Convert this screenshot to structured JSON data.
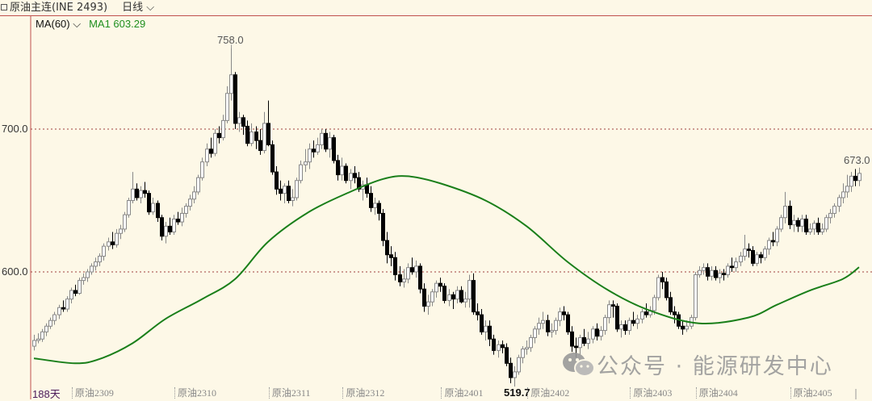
{
  "header": {
    "instrument": "原油主连(INE 2493)",
    "period": "日线"
  },
  "indicator": {
    "selector": "MA(60)",
    "value_label": "MA1 603.29"
  },
  "footer": {
    "days": "188天"
  },
  "watermark": "公众号 · 能源研发中心",
  "colors": {
    "background": "#fdf8e7",
    "up": "#ffffff",
    "up_border": "#888888",
    "down": "#000000",
    "ma": "#1a7f1a",
    "grid": "#a0403d"
  },
  "chart_data": {
    "type": "candlestick",
    "ylim": [
      520.3,
      779
    ],
    "yticks": [
      {
        "value": 700,
        "label": "700.0"
      },
      {
        "value": 600,
        "label": "600.0"
      }
    ],
    "grid": "dotted horizontal at ticks",
    "xticks": [
      {
        "index": 10,
        "label": "原油2309"
      },
      {
        "index": 35,
        "label": "原油2310"
      },
      {
        "index": 58,
        "label": "原油2311"
      },
      {
        "index": 76,
        "label": "原油2312"
      },
      {
        "index": 100,
        "label": "原油2401"
      },
      {
        "index": 121,
        "label": "原油2402"
      },
      {
        "index": 146,
        "label": "原油2403"
      },
      {
        "index": 162,
        "label": "原油2404"
      },
      {
        "index": 185,
        "label": "原油2405"
      }
    ],
    "annotations": {
      "high": "758.0",
      "low": "519.7",
      "last_high": "673.0"
    },
    "ohlc": [
      [
        548,
        556,
        545,
        552
      ],
      [
        552,
        557,
        550,
        553
      ],
      [
        553,
        560,
        551,
        558
      ],
      [
        558,
        564,
        555,
        562
      ],
      [
        562,
        568,
        560,
        566
      ],
      [
        566,
        572,
        563,
        570
      ],
      [
        570,
        577,
        567,
        575
      ],
      [
        575,
        580,
        572,
        574
      ],
      [
        574,
        583,
        572,
        581
      ],
      [
        581,
        589,
        578,
        587
      ],
      [
        587,
        591,
        583,
        585
      ],
      [
        585,
        596,
        584,
        594
      ],
      [
        594,
        599,
        591,
        596
      ],
      [
        596,
        602,
        593,
        600
      ],
      [
        600,
        606,
        598,
        604
      ],
      [
        604,
        610,
        601,
        607
      ],
      [
        607,
        613,
        604,
        611
      ],
      [
        611,
        620,
        608,
        618
      ],
      [
        618,
        624,
        615,
        621
      ],
      [
        621,
        628,
        616,
        619
      ],
      [
        619,
        630,
        617,
        627
      ],
      [
        627,
        633,
        623,
        630
      ],
      [
        630,
        642,
        628,
        640
      ],
      [
        640,
        652,
        638,
        650
      ],
      [
        650,
        670,
        648,
        658
      ],
      [
        658,
        662,
        650,
        652
      ],
      [
        652,
        660,
        648,
        657
      ],
      [
        657,
        663,
        652,
        655
      ],
      [
        655,
        657,
        640,
        642
      ],
      [
        642,
        652,
        640,
        648
      ],
      [
        648,
        650,
        635,
        638
      ],
      [
        638,
        640,
        622,
        625
      ],
      [
        625,
        635,
        620,
        632
      ],
      [
        632,
        638,
        626,
        628
      ],
      [
        628,
        640,
        626,
        637
      ],
      [
        637,
        642,
        633,
        635
      ],
      [
        635,
        645,
        632,
        641
      ],
      [
        641,
        648,
        638,
        646
      ],
      [
        646,
        654,
        643,
        651
      ],
      [
        651,
        660,
        648,
        656
      ],
      [
        656,
        668,
        654,
        666
      ],
      [
        666,
        680,
        664,
        677
      ],
      [
        677,
        690,
        674,
        686
      ],
      [
        686,
        694,
        680,
        683
      ],
      [
        683,
        700,
        681,
        697
      ],
      [
        697,
        702,
        690,
        694
      ],
      [
        694,
        710,
        692,
        706
      ],
      [
        706,
        730,
        704,
        725
      ],
      [
        725,
        758,
        720,
        738
      ],
      [
        738,
        740,
        700,
        704
      ],
      [
        704,
        712,
        698,
        708
      ],
      [
        708,
        710,
        696,
        702
      ],
      [
        702,
        706,
        688,
        690
      ],
      [
        690,
        704,
        688,
        698
      ],
      [
        698,
        702,
        686,
        692
      ],
      [
        692,
        700,
        682,
        685
      ],
      [
        685,
        712,
        683,
        704
      ],
      [
        704,
        720,
        688,
        689
      ],
      [
        689,
        692,
        668,
        670
      ],
      [
        670,
        674,
        654,
        658
      ],
      [
        658,
        664,
        650,
        655
      ],
      [
        655,
        662,
        648,
        660
      ],
      [
        660,
        664,
        648,
        650
      ],
      [
        650,
        658,
        646,
        652
      ],
      [
        652,
        666,
        650,
        664
      ],
      [
        664,
        678,
        662,
        675
      ],
      [
        675,
        686,
        670,
        677
      ],
      [
        677,
        690,
        672,
        686
      ],
      [
        686,
        692,
        680,
        684
      ],
      [
        684,
        694,
        682,
        689
      ],
      [
        689,
        700,
        686,
        697
      ],
      [
        697,
        700,
        684,
        686
      ],
      [
        686,
        698,
        680,
        694
      ],
      [
        694,
        696,
        676,
        678
      ],
      [
        678,
        682,
        664,
        668
      ],
      [
        668,
        680,
        664,
        674
      ],
      [
        674,
        676,
        662,
        664
      ],
      [
        664,
        672,
        658,
        669
      ],
      [
        669,
        674,
        662,
        666
      ],
      [
        666,
        670,
        656,
        658
      ],
      [
        658,
        664,
        650,
        661
      ],
      [
        661,
        666,
        652,
        655
      ],
      [
        655,
        660,
        642,
        645
      ],
      [
        645,
        652,
        640,
        648
      ],
      [
        648,
        650,
        636,
        641
      ],
      [
        641,
        644,
        618,
        622
      ],
      [
        622,
        628,
        606,
        612
      ],
      [
        612,
        618,
        604,
        610
      ],
      [
        610,
        614,
        594,
        598
      ],
      [
        598,
        604,
        590,
        593
      ],
      [
        593,
        602,
        589,
        595
      ],
      [
        595,
        606,
        592,
        603
      ],
      [
        603,
        610,
        598,
        600
      ],
      [
        600,
        608,
        596,
        604
      ],
      [
        604,
        606,
        585,
        588
      ],
      [
        588,
        592,
        572,
        576
      ],
      [
        576,
        584,
        570,
        579
      ],
      [
        579,
        588,
        576,
        586
      ],
      [
        586,
        594,
        582,
        592
      ],
      [
        592,
        596,
        586,
        590
      ],
      [
        590,
        592,
        578,
        580
      ],
      [
        580,
        588,
        576,
        584
      ],
      [
        584,
        586,
        574,
        581
      ],
      [
        581,
        590,
        578,
        587
      ],
      [
        587,
        590,
        578,
        579
      ],
      [
        579,
        586,
        575,
        581
      ],
      [
        581,
        598,
        575,
        594
      ],
      [
        594,
        599,
        570,
        572
      ],
      [
        572,
        578,
        566,
        570
      ],
      [
        570,
        574,
        556,
        558
      ],
      [
        558,
        566,
        552,
        562
      ],
      [
        562,
        566,
        548,
        553
      ],
      [
        553,
        556,
        542,
        545
      ],
      [
        545,
        552,
        540,
        549
      ],
      [
        549,
        552,
        543,
        547
      ],
      [
        547,
        550,
        534,
        536
      ],
      [
        536,
        540,
        522,
        526
      ],
      [
        526,
        534,
        519.7,
        530
      ],
      [
        530,
        542,
        528,
        540
      ],
      [
        540,
        548,
        536,
        546
      ],
      [
        546,
        552,
        542,
        547
      ],
      [
        547,
        556,
        544,
        554
      ],
      [
        554,
        562,
        550,
        560
      ],
      [
        560,
        568,
        556,
        564
      ],
      [
        564,
        572,
        560,
        566
      ],
      [
        566,
        570,
        555,
        558
      ],
      [
        558,
        564,
        554,
        559
      ],
      [
        559,
        568,
        556,
        566
      ],
      [
        566,
        575,
        562,
        572
      ],
      [
        572,
        576,
        566,
        570
      ],
      [
        570,
        572,
        556,
        558
      ],
      [
        558,
        562,
        544,
        548
      ],
      [
        548,
        554,
        540,
        547
      ],
      [
        547,
        556,
        542,
        554
      ],
      [
        554,
        560,
        548,
        550
      ],
      [
        550,
        558,
        546,
        553
      ],
      [
        553,
        562,
        550,
        560
      ],
      [
        560,
        564,
        552,
        555
      ],
      [
        555,
        562,
        552,
        559
      ],
      [
        559,
        570,
        556,
        568
      ],
      [
        568,
        580,
        564,
        577
      ],
      [
        577,
        580,
        568,
        576
      ],
      [
        576,
        578,
        558,
        560
      ],
      [
        560,
        566,
        554,
        563
      ],
      [
        563,
        566,
        556,
        559
      ],
      [
        559,
        568,
        556,
        566
      ],
      [
        566,
        572,
        562,
        564
      ],
      [
        564,
        570,
        560,
        567
      ],
      [
        567,
        574,
        564,
        572
      ],
      [
        572,
        578,
        568,
        570
      ],
      [
        570,
        576,
        568,
        573
      ],
      [
        573,
        584,
        570,
        582
      ],
      [
        582,
        598,
        580,
        596
      ],
      [
        596,
        600,
        588,
        593
      ],
      [
        593,
        596,
        580,
        582
      ],
      [
        582,
        586,
        570,
        572
      ],
      [
        572,
        576,
        564,
        570
      ],
      [
        570,
        572,
        560,
        562
      ],
      [
        562,
        566,
        556,
        560
      ],
      [
        560,
        566,
        558,
        562
      ],
      [
        562,
        570,
        560,
        568
      ],
      [
        568,
        600,
        566,
        598
      ],
      [
        598,
        604,
        596,
        601
      ],
      [
        601,
        606,
        598,
        603
      ],
      [
        603,
        606,
        594,
        597
      ],
      [
        597,
        604,
        594,
        601
      ],
      [
        601,
        604,
        594,
        596
      ],
      [
        596,
        602,
        592,
        599
      ],
      [
        599,
        602,
        594,
        598
      ],
      [
        598,
        606,
        596,
        604
      ],
      [
        604,
        610,
        600,
        603
      ],
      [
        603,
        610,
        600,
        607
      ],
      [
        607,
        614,
        604,
        611
      ],
      [
        611,
        626,
        608,
        616
      ],
      [
        616,
        620,
        610,
        615
      ],
      [
        615,
        618,
        604,
        606
      ],
      [
        606,
        614,
        604,
        612
      ],
      [
        612,
        614,
        606,
        610
      ],
      [
        610,
        618,
        608,
        616
      ],
      [
        616,
        624,
        612,
        622
      ],
      [
        622,
        628,
        618,
        621
      ],
      [
        621,
        632,
        618,
        630
      ],
      [
        630,
        640,
        628,
        638
      ],
      [
        638,
        656,
        634,
        646
      ],
      [
        646,
        650,
        630,
        633
      ],
      [
        633,
        640,
        628,
        636
      ],
      [
        636,
        638,
        628,
        632
      ],
      [
        632,
        640,
        628,
        637
      ],
      [
        637,
        640,
        626,
        628
      ],
      [
        628,
        634,
        626,
        630
      ],
      [
        630,
        636,
        626,
        634
      ],
      [
        634,
        638,
        626,
        628
      ],
      [
        628,
        634,
        626,
        630
      ],
      [
        630,
        640,
        628,
        638
      ],
      [
        638,
        644,
        634,
        641
      ],
      [
        641,
        648,
        638,
        646
      ],
      [
        646,
        654,
        642,
        652
      ],
      [
        652,
        662,
        648,
        656
      ],
      [
        656,
        668,
        652,
        660
      ],
      [
        660,
        670,
        656,
        667
      ],
      [
        667,
        672,
        660,
        664
      ],
      [
        664,
        673,
        660,
        669
      ]
    ],
    "ma60": [
      [
        0,
        539.5
      ],
      [
        10,
        536
      ],
      [
        16,
        539
      ],
      [
        24,
        550
      ],
      [
        32,
        567
      ],
      [
        41,
        581
      ],
      [
        49,
        595
      ],
      [
        57,
        621
      ],
      [
        67,
        642
      ],
      [
        77,
        656
      ],
      [
        85,
        665
      ],
      [
        91,
        667
      ],
      [
        99,
        662
      ],
      [
        110,
        650
      ],
      [
        120,
        632
      ],
      [
        130,
        607
      ],
      [
        140,
        587
      ],
      [
        150,
        573
      ],
      [
        162,
        564
      ],
      [
        174,
        568
      ],
      [
        181,
        577
      ],
      [
        189,
        587
      ],
      [
        197,
        595
      ],
      [
        201,
        603.29
      ]
    ]
  }
}
